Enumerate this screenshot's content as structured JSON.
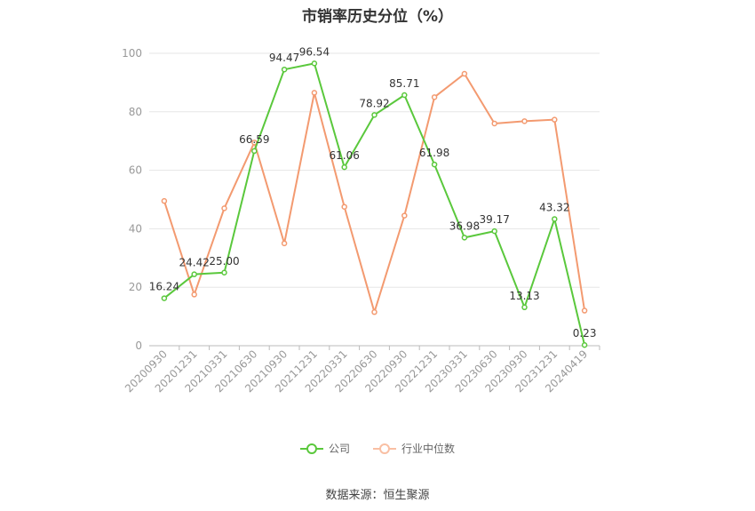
{
  "chart_data": {
    "type": "line",
    "title": "市销率历史分位（%）",
    "categories": [
      "20200930",
      "20201231",
      "20210331",
      "20210630",
      "20210930",
      "20211231",
      "20220331",
      "20220630",
      "20220930",
      "20221231",
      "20230331",
      "20230630",
      "20230930",
      "20231231",
      "20240419"
    ],
    "series": [
      {
        "name": "公司",
        "color": "#5ac83c",
        "values": [
          16.24,
          24.42,
          25.0,
          66.59,
          94.47,
          96.54,
          61.06,
          78.92,
          85.71,
          61.98,
          36.98,
          39.17,
          13.13,
          43.32,
          0.23
        ],
        "labels": [
          "16.24",
          "24.42",
          "25.00",
          "66.59",
          "94.47",
          "96.54",
          "61.06",
          "78.92",
          "85.71",
          "61.98",
          "36.98",
          "39.17",
          "13.13",
          "43.32",
          "0.23"
        ]
      },
      {
        "name": "行业中位数",
        "color": "#f39a70",
        "values": [
          49.5,
          17.5,
          47.0,
          69.5,
          35.0,
          86.5,
          47.5,
          11.5,
          44.5,
          85.0,
          93.0,
          76.0,
          76.8,
          77.3,
          12.0
        ]
      }
    ],
    "y_ticks": [
      0,
      20,
      40,
      60,
      80,
      100
    ],
    "ylim": [
      0,
      100
    ],
    "grid": true,
    "legend_position": "bottom-center"
  },
  "source": "数据来源：恒生聚源"
}
